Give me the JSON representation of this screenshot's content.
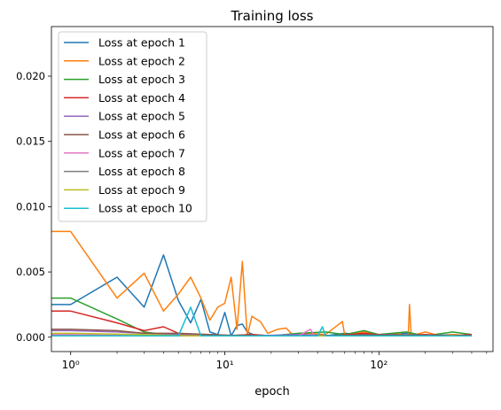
{
  "chart_data": {
    "type": "line",
    "title": "Training loss",
    "xlabel": "epoch",
    "ylabel": "",
    "xscale": "log",
    "xlim": [
      0.75,
      550
    ],
    "ylim": [
      -0.0011,
      0.0238
    ],
    "x_ticks": [
      {
        "value": 1,
        "label": "10⁰"
      },
      {
        "value": 10,
        "label": "10¹"
      },
      {
        "value": 100,
        "label": "10²"
      }
    ],
    "y_ticks": [
      {
        "value": 0.0,
        "label": "0.000"
      },
      {
        "value": 0.005,
        "label": "0.005"
      },
      {
        "value": 0.01,
        "label": "0.010"
      },
      {
        "value": 0.015,
        "label": "0.015"
      },
      {
        "value": 0.02,
        "label": "0.020"
      }
    ],
    "grid": false,
    "legend_position": "top-left",
    "series": [
      {
        "name": "Loss at epoch 1",
        "color": "#1f77b4",
        "points": [
          [
            0.7,
            0.0025
          ],
          [
            1,
            0.0025
          ],
          [
            2,
            0.0046
          ],
          [
            3,
            0.0023
          ],
          [
            4,
            0.0063
          ],
          [
            5,
            0.0028
          ],
          [
            6,
            0.0011
          ],
          [
            7,
            0.0029
          ],
          [
            8,
            0.0004
          ],
          [
            9,
            0.0002
          ],
          [
            10,
            0.0019
          ],
          [
            11,
            0.0001
          ],
          [
            12,
            0.0009
          ],
          [
            13,
            0.001
          ],
          [
            14,
            0.0004
          ],
          [
            16,
            0.0001
          ],
          [
            20,
            0.0001
          ],
          [
            30,
            0.0002
          ],
          [
            45,
            0.0001
          ],
          [
            60,
            0.0003
          ],
          [
            80,
            0.0002
          ],
          [
            100,
            0.0001
          ],
          [
            150,
            0.0003
          ],
          [
            200,
            0.0001
          ],
          [
            300,
            0.0002
          ],
          [
            400,
            0.0001
          ]
        ]
      },
      {
        "name": "Loss at epoch 2",
        "color": "#ff7f0e",
        "points": [
          [
            0.7,
            0.0081
          ],
          [
            1,
            0.0081
          ],
          [
            2,
            0.003
          ],
          [
            3,
            0.0049
          ],
          [
            4,
            0.002
          ],
          [
            5,
            0.0033
          ],
          [
            6,
            0.0046
          ],
          [
            7,
            0.003
          ],
          [
            8,
            0.0013
          ],
          [
            9,
            0.0023
          ],
          [
            10,
            0.0026
          ],
          [
            11,
            0.0046
          ],
          [
            12,
            0.0006
          ],
          [
            13,
            0.0058
          ],
          [
            14,
            0.0001
          ],
          [
            15,
            0.0016
          ],
          [
            17,
            0.0012
          ],
          [
            19,
            0.0003
          ],
          [
            22,
            0.0006
          ],
          [
            25,
            0.0007
          ],
          [
            28,
            0.0001
          ],
          [
            35,
            0.0003
          ],
          [
            45,
            0.0002
          ],
          [
            58,
            0.0012
          ],
          [
            60,
            0.0001
          ],
          [
            80,
            0.0004
          ],
          [
            100,
            0.0002
          ],
          [
            130,
            0.0003
          ],
          [
            155,
            0.0001
          ],
          [
            158,
            0.0025
          ],
          [
            162,
            0.0001
          ],
          [
            200,
            0.0004
          ],
          [
            250,
            0.0001
          ],
          [
            300,
            0.0002
          ],
          [
            400,
            0.0001
          ]
        ]
      },
      {
        "name": "Loss at epoch 3",
        "color": "#2ca02c",
        "points": [
          [
            0.7,
            0.003
          ],
          [
            1,
            0.003
          ],
          [
            2,
            0.0014
          ],
          [
            3,
            0.0004
          ],
          [
            4,
            0.0002
          ],
          [
            5,
            0.0002
          ],
          [
            6,
            0.0001
          ],
          [
            8,
            0.0002
          ],
          [
            10,
            0.0001
          ],
          [
            15,
            0.0002
          ],
          [
            20,
            0.0001
          ],
          [
            30,
            0.0003
          ],
          [
            45,
            0.0004
          ],
          [
            60,
            0.0002
          ],
          [
            80,
            0.0005
          ],
          [
            100,
            0.0002
          ],
          [
            150,
            0.0004
          ],
          [
            200,
            0.0001
          ],
          [
            300,
            0.0004
          ],
          [
            400,
            0.0002
          ]
        ]
      },
      {
        "name": "Loss at epoch 4",
        "color": "#d62728",
        "points": [
          [
            0.7,
            0.002
          ],
          [
            1,
            0.002
          ],
          [
            2,
            0.0011
          ],
          [
            3,
            0.0005
          ],
          [
            4,
            0.0008
          ],
          [
            5,
            0.0003
          ],
          [
            6,
            0.0001
          ],
          [
            8,
            0.0002
          ],
          [
            10,
            0.0001
          ],
          [
            15,
            0.0002
          ],
          [
            20,
            0.0001
          ],
          [
            30,
            0.0002
          ],
          [
            50,
            0.0001
          ],
          [
            80,
            0.0003
          ],
          [
            120,
            0.0001
          ],
          [
            200,
            0.0002
          ],
          [
            300,
            0.0001
          ],
          [
            400,
            0.0002
          ]
        ]
      },
      {
        "name": "Loss at epoch 5",
        "color": "#9467bd",
        "points": [
          [
            0.7,
            0.0005
          ],
          [
            1,
            0.0005
          ],
          [
            2,
            0.0004
          ],
          [
            3,
            0.0003
          ],
          [
            5,
            0.0002
          ],
          [
            8,
            0.0001
          ],
          [
            15,
            0.0001
          ],
          [
            30,
            0.0002
          ],
          [
            60,
            0.0001
          ],
          [
            120,
            0.0002
          ],
          [
            250,
            0.0001
          ],
          [
            400,
            0.0001
          ]
        ]
      },
      {
        "name": "Loss at epoch 6",
        "color": "#8c564b",
        "points": [
          [
            0.7,
            0.0006
          ],
          [
            1,
            0.0006
          ],
          [
            2,
            0.0005
          ],
          [
            3,
            0.0003
          ],
          [
            5,
            0.0003
          ],
          [
            8,
            0.0002
          ],
          [
            15,
            0.0001
          ],
          [
            40,
            0.0001
          ],
          [
            100,
            0.0002
          ],
          [
            250,
            0.0001
          ],
          [
            400,
            0.0001
          ]
        ]
      },
      {
        "name": "Loss at epoch 7",
        "color": "#e377c2",
        "points": [
          [
            0.7,
            0.0002
          ],
          [
            1,
            0.0002
          ],
          [
            3,
            0.0001
          ],
          [
            10,
            0.0001
          ],
          [
            30,
            0.0001
          ],
          [
            36,
            0.0006
          ],
          [
            38,
            0.0001
          ],
          [
            100,
            0.0001
          ],
          [
            400,
            0.0001
          ]
        ]
      },
      {
        "name": "Loss at epoch 8",
        "color": "#7f7f7f",
        "points": [
          [
            0.7,
            0.0001
          ],
          [
            1,
            0.0001
          ],
          [
            5,
            0.0001
          ],
          [
            20,
            0.0001
          ],
          [
            100,
            0.0001
          ],
          [
            400,
            0.0001
          ]
        ]
      },
      {
        "name": "Loss at epoch 9",
        "color": "#bcbd22",
        "points": [
          [
            0.7,
            0.0003
          ],
          [
            1,
            0.0003
          ],
          [
            3,
            0.0002
          ],
          [
            6,
            0.0001
          ],
          [
            20,
            0.0001
          ],
          [
            100,
            0.0001
          ],
          [
            400,
            0.0001
          ]
        ]
      },
      {
        "name": "Loss at epoch 10",
        "color": "#17becf",
        "points": [
          [
            0.7,
            0.0001
          ],
          [
            1,
            0.0001
          ],
          [
            4,
            0.0001
          ],
          [
            5,
            0.0001
          ],
          [
            6,
            0.0023
          ],
          [
            7,
            0.0001
          ],
          [
            10,
            0.0001
          ],
          [
            40,
            0.0001
          ],
          [
            43,
            0.0008
          ],
          [
            45,
            0.0001
          ],
          [
            100,
            0.0001
          ],
          [
            400,
            0.0001
          ]
        ]
      }
    ]
  }
}
